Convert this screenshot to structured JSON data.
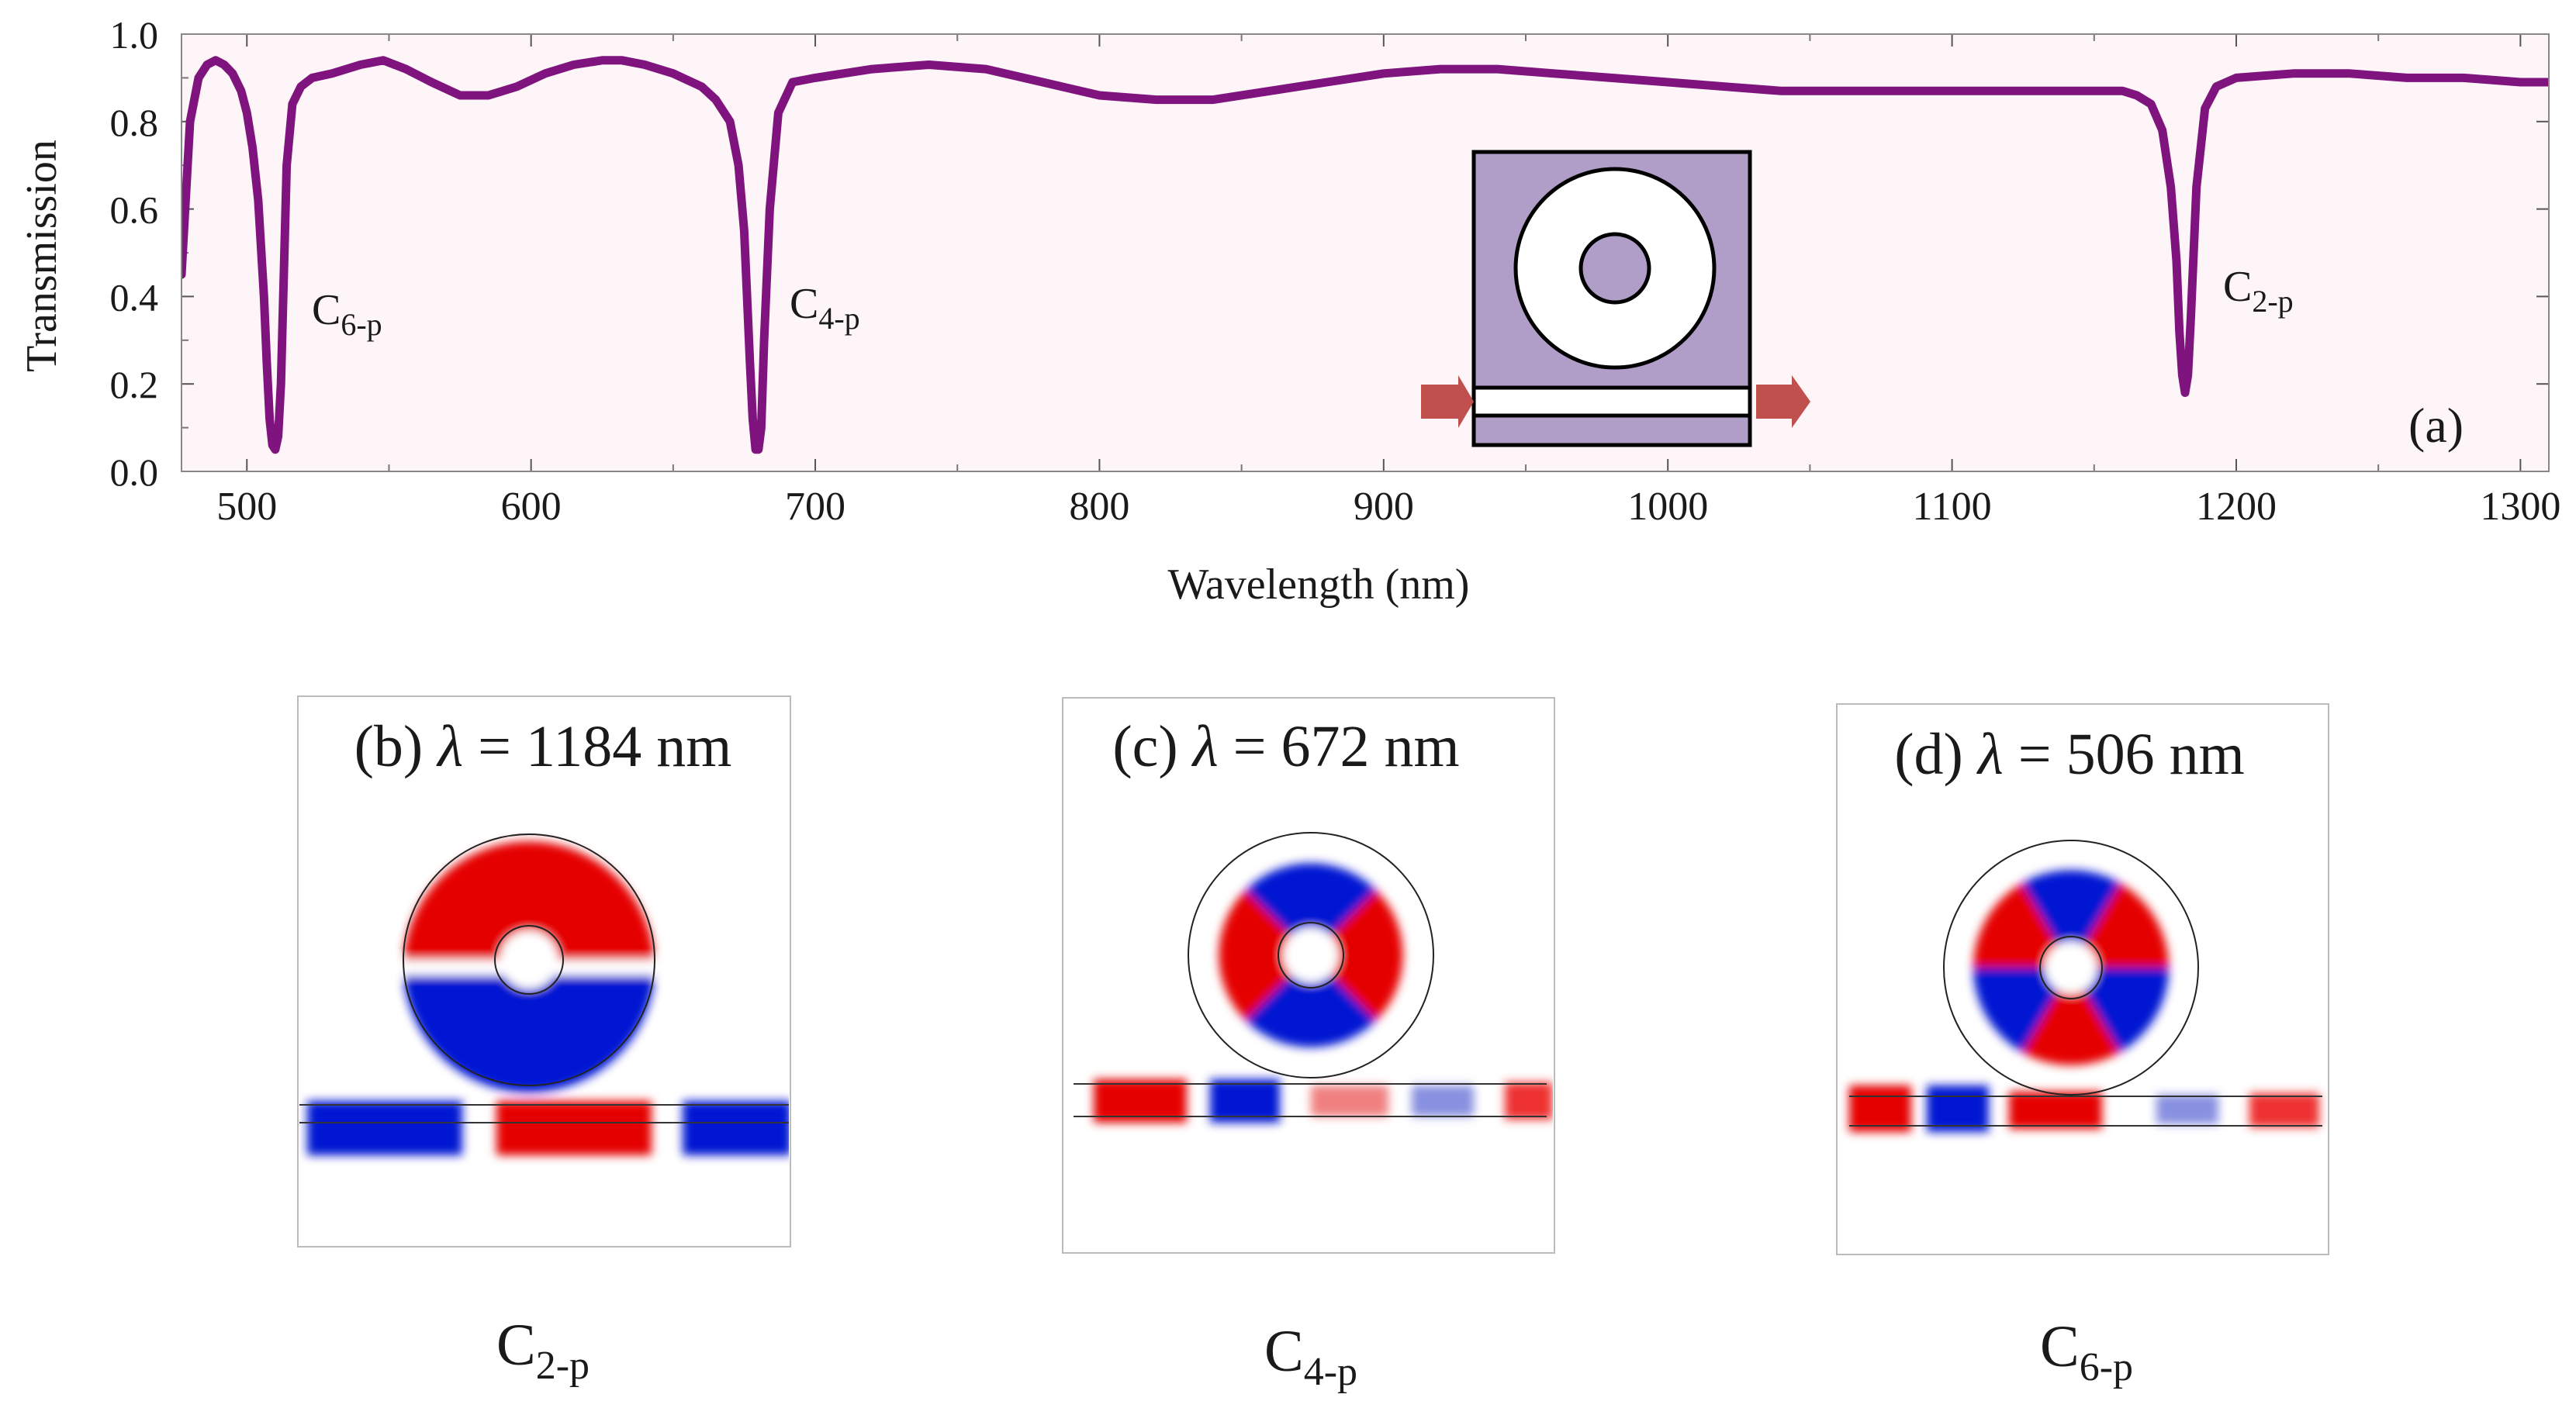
{
  "chart_data": {
    "type": "line",
    "panel_label": "(a)",
    "xlabel": "Wavelength (nm)",
    "ylabel": "Transmission",
    "xlim": [
      477,
      1310
    ],
    "ylim": [
      0,
      1.0
    ],
    "x_ticks": [
      500,
      600,
      700,
      800,
      900,
      1000,
      1100,
      1200,
      1300
    ],
    "y_ticks": [
      "0.0",
      "0.2",
      "0.4",
      "0.6",
      "0.8",
      "1.0"
    ],
    "y_tick_values": [
      0.0,
      0.2,
      0.4,
      0.6,
      0.8,
      1.0
    ],
    "line_color": "#7f147f",
    "series": [
      {
        "name": "Transmission",
        "x": [
          477,
          480,
          483,
          486,
          489,
          492,
          495,
          498,
          500,
          502,
          504,
          506,
          507,
          508,
          509,
          510,
          511,
          512,
          513,
          514,
          516,
          519,
          523,
          530,
          540,
          548,
          556,
          565,
          575,
          585,
          595,
          605,
          615,
          625,
          632,
          640,
          650,
          660,
          665,
          670,
          673,
          675,
          676,
          677,
          678,
          679,
          680,
          681,
          682,
          684,
          687,
          692,
          700,
          720,
          740,
          760,
          780,
          800,
          820,
          840,
          860,
          880,
          900,
          920,
          940,
          960,
          980,
          1000,
          1020,
          1040,
          1060,
          1080,
          1100,
          1120,
          1140,
          1160,
          1165,
          1170,
          1174,
          1177,
          1179,
          1180,
          1181,
          1182,
          1183,
          1184,
          1186,
          1189,
          1193,
          1200,
          1220,
          1240,
          1260,
          1280,
          1300,
          1310
        ],
        "y": [
          0.45,
          0.8,
          0.9,
          0.93,
          0.94,
          0.93,
          0.91,
          0.87,
          0.82,
          0.74,
          0.62,
          0.4,
          0.25,
          0.12,
          0.06,
          0.05,
          0.08,
          0.2,
          0.45,
          0.7,
          0.84,
          0.88,
          0.9,
          0.91,
          0.93,
          0.94,
          0.92,
          0.89,
          0.86,
          0.86,
          0.88,
          0.91,
          0.93,
          0.94,
          0.94,
          0.93,
          0.91,
          0.88,
          0.85,
          0.8,
          0.7,
          0.55,
          0.4,
          0.25,
          0.12,
          0.05,
          0.05,
          0.1,
          0.3,
          0.6,
          0.82,
          0.89,
          0.9,
          0.92,
          0.93,
          0.92,
          0.89,
          0.86,
          0.85,
          0.85,
          0.87,
          0.89,
          0.91,
          0.92,
          0.92,
          0.91,
          0.9,
          0.89,
          0.88,
          0.87,
          0.87,
          0.87,
          0.87,
          0.87,
          0.87,
          0.87,
          0.86,
          0.84,
          0.78,
          0.65,
          0.48,
          0.32,
          0.22,
          0.18,
          0.22,
          0.35,
          0.65,
          0.83,
          0.88,
          0.9,
          0.91,
          0.91,
          0.9,
          0.9,
          0.89,
          0.89
        ]
      }
    ],
    "annotations": [
      {
        "base": "C",
        "sub": "6-p"
      },
      {
        "base": "C",
        "sub": "4-p"
      },
      {
        "base": "C",
        "sub": "2-p"
      }
    ],
    "inset": {
      "ring_fill": "#b09ec8",
      "arrow_color": "#c0504d"
    }
  },
  "field_panels": [
    {
      "label": "(b)",
      "lambda_symbol": "λ",
      "equals": " = ",
      "value": "1184",
      "unit": " nm",
      "mode_base": "C",
      "mode_sub": "2-p"
    },
    {
      "label": "(c)",
      "lambda_symbol": "λ",
      "equals": " = ",
      "value": "672",
      "unit": " nm",
      "mode_base": "C",
      "mode_sub": "4-p"
    },
    {
      "label": "(d)",
      "lambda_symbol": "λ",
      "equals": " = ",
      "value": "506",
      "unit": " nm",
      "mode_base": "C",
      "mode_sub": "6-p"
    }
  ],
  "colors": {
    "positive": "#e50000",
    "negative": "#0014d2",
    "frame": "#bbbbbb"
  }
}
